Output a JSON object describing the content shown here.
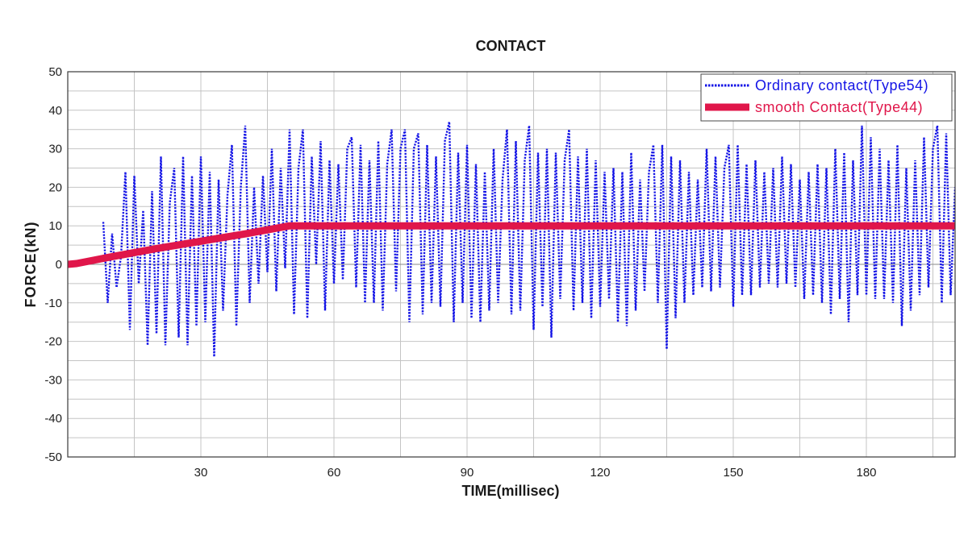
{
  "chart_data": {
    "type": "line",
    "title": "CONTACT",
    "xlabel": "TIME(millisec)",
    "ylabel": "FORCE(kN)",
    "xlim": [
      0,
      200
    ],
    "ylim": [
      -50,
      50
    ],
    "xticks": [
      30,
      60,
      90,
      120,
      150,
      180
    ],
    "yticks": [
      50,
      40,
      30,
      20,
      10,
      0,
      -10,
      -20,
      -30,
      -40,
      -50
    ],
    "grid": true,
    "legend": "top-right",
    "series": [
      {
        "name": "Ordinary contact(Type54)",
        "color": "#1414e6",
        "x": [
          8,
          9,
          10,
          11,
          12,
          13,
          14,
          15,
          16,
          17,
          18,
          19,
          20,
          21,
          22,
          23,
          24,
          25,
          26,
          27,
          28,
          29,
          30,
          31,
          32,
          33,
          34,
          35,
          36,
          37,
          38,
          39,
          40,
          41,
          42,
          43,
          44,
          45,
          46,
          47,
          48,
          49,
          50,
          51,
          52,
          53,
          54,
          55,
          56,
          57,
          58,
          59,
          60,
          61,
          62,
          63,
          64,
          65,
          66,
          67,
          68,
          69,
          70,
          71,
          72,
          73,
          74,
          75,
          76,
          77,
          78,
          79,
          80,
          81,
          82,
          83,
          84,
          85,
          86,
          87,
          88,
          89,
          90,
          91,
          92,
          93,
          94,
          95,
          96,
          97,
          98,
          99,
          100,
          101,
          102,
          103,
          104,
          105,
          106,
          107,
          108,
          109,
          110,
          111,
          112,
          113,
          114,
          115,
          116,
          117,
          118,
          119,
          120,
          121,
          122,
          123,
          124,
          125,
          126,
          127,
          128,
          129,
          130,
          131,
          132,
          133,
          134,
          135,
          136,
          137,
          138,
          139,
          140,
          141,
          142,
          143,
          144,
          145,
          146,
          147,
          148,
          149,
          150,
          151,
          152,
          153,
          154,
          155,
          156,
          157,
          158,
          159,
          160,
          161,
          162,
          163,
          164,
          165,
          166,
          167,
          168,
          169,
          170,
          171,
          172,
          173,
          174,
          175,
          176,
          177,
          178,
          179,
          180,
          181,
          182,
          183,
          184,
          185,
          186,
          187,
          188,
          189,
          190,
          191,
          192,
          193,
          194,
          195,
          196,
          197,
          198,
          199,
          200
        ],
        "y": [
          11,
          -10,
          8,
          -6,
          2,
          24,
          -17,
          23,
          -5,
          14,
          -21,
          19,
          -18,
          28,
          -21,
          16,
          25,
          -19,
          28,
          -21,
          23,
          -16,
          28,
          -15,
          24,
          -24,
          22,
          -12,
          18,
          31,
          -16,
          20,
          36,
          -10,
          20,
          -5,
          23,
          -2,
          30,
          -7,
          25,
          -1,
          35,
          -13,
          25,
          35,
          -14,
          28,
          0,
          32,
          -12,
          27,
          -5,
          26,
          -4,
          30,
          33,
          -6,
          31,
          -10,
          27,
          -10,
          32,
          -12,
          26,
          35,
          -7,
          30,
          35,
          -15,
          30,
          34,
          -13,
          31,
          -10,
          28,
          -11,
          32,
          37,
          -15,
          29,
          -10,
          31,
          -14,
          26,
          -15,
          24,
          -12,
          30,
          -10,
          22,
          35,
          -13,
          32,
          -12,
          27,
          36,
          -17,
          29,
          -11,
          30,
          -19,
          29,
          -9,
          27,
          35,
          -12,
          28,
          -10,
          30,
          -14,
          27,
          -11,
          24,
          -9,
          25,
          -15,
          24,
          -16,
          29,
          -12,
          22,
          -7,
          24,
          31,
          -10,
          31,
          -22,
          28,
          -14,
          27,
          -10,
          24,
          -8,
          22,
          -6,
          30,
          -7,
          28,
          -6,
          25,
          31,
          -11,
          31,
          -8,
          26,
          -8,
          27,
          -6,
          24,
          -5,
          25,
          -6,
          28,
          -5,
          26,
          -6,
          22,
          -9,
          24,
          -8,
          26,
          -10,
          25,
          -13,
          30,
          -9,
          29,
          -15,
          27,
          -8,
          36,
          -8,
          33,
          -9,
          30,
          -9,
          27,
          -10,
          31,
          -16,
          25,
          -12,
          27,
          -8,
          33,
          -6,
          30,
          36,
          -10,
          34,
          -8,
          20
        ]
      },
      {
        "name": "smooth Contact(Type44)",
        "color": "#e0164a",
        "x": [
          0,
          2,
          10,
          20,
          30,
          40,
          50,
          200
        ],
        "y": [
          0,
          0.2,
          2,
          4.1,
          6,
          7.9,
          10,
          10
        ]
      }
    ]
  }
}
